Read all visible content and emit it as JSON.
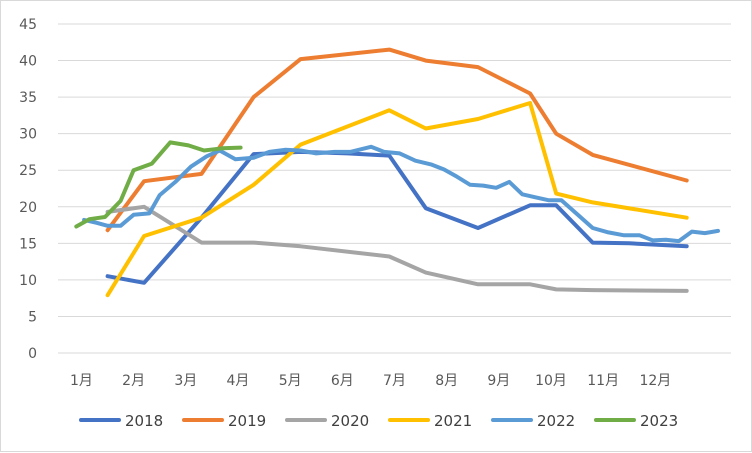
{
  "chart_data": {
    "type": "line",
    "title": "",
    "xlabel": "",
    "ylabel": "",
    "ylim": [
      0,
      45
    ],
    "yticks": [
      0,
      5,
      10,
      15,
      20,
      25,
      30,
      35,
      40,
      45
    ],
    "x_ticks": [
      {
        "label": "1月",
        "x": 1
      },
      {
        "label": "2月",
        "x": 2
      },
      {
        "label": "3月",
        "x": 3
      },
      {
        "label": "4月",
        "x": 4
      },
      {
        "label": "5月",
        "x": 5
      },
      {
        "label": "6月",
        "x": 6
      },
      {
        "label": "7月",
        "x": 7
      },
      {
        "label": "8月",
        "x": 8
      },
      {
        "label": "9月",
        "x": 9
      },
      {
        "label": "10月",
        "x": 10
      },
      {
        "label": "11月",
        "x": 11
      },
      {
        "label": "12月",
        "x": 12
      }
    ],
    "grid": true,
    "legend_position": "bottom",
    "series": [
      {
        "name": "2018",
        "color": "#4472C4",
        "points": [
          [
            1.5,
            10.5
          ],
          [
            2.2,
            9.6
          ],
          [
            3.3,
            18.5
          ],
          [
            4.3,
            27.2
          ],
          [
            5.2,
            27.5
          ],
          [
            6.1,
            27.3
          ],
          [
            6.9,
            27.0
          ],
          [
            7.6,
            19.8
          ],
          [
            8.6,
            17.1
          ],
          [
            9.6,
            20.2
          ],
          [
            10.1,
            20.2
          ],
          [
            10.8,
            15.1
          ],
          [
            11.5,
            15.0
          ],
          [
            12.6,
            14.6
          ]
        ]
      },
      {
        "name": "2019",
        "color": "#ED7D31",
        "points": [
          [
            1.5,
            16.8
          ],
          [
            2.2,
            23.5
          ],
          [
            3.3,
            24.5
          ],
          [
            4.3,
            35.0
          ],
          [
            5.2,
            40.2
          ],
          [
            6.9,
            41.5
          ],
          [
            7.6,
            40.0
          ],
          [
            8.6,
            39.1
          ],
          [
            9.6,
            35.5
          ],
          [
            10.1,
            30.0
          ],
          [
            10.8,
            27.1
          ],
          [
            12.6,
            23.6
          ]
        ]
      },
      {
        "name": "2020",
        "color": "#A5A5A5",
        "points": [
          [
            1.5,
            19.3
          ],
          [
            2.2,
            20.0
          ],
          [
            3.3,
            15.1
          ],
          [
            4.3,
            15.1
          ],
          [
            5.2,
            14.6
          ],
          [
            6.9,
            13.2
          ],
          [
            7.6,
            11.0
          ],
          [
            8.6,
            9.4
          ],
          [
            9.6,
            9.4
          ],
          [
            10.1,
            8.7
          ],
          [
            10.8,
            8.6
          ],
          [
            12.6,
            8.5
          ]
        ]
      },
      {
        "name": "2021",
        "color": "#FFC000",
        "points": [
          [
            1.5,
            7.9
          ],
          [
            2.2,
            16.0
          ],
          [
            3.3,
            18.5
          ],
          [
            4.3,
            23.0
          ],
          [
            5.2,
            28.5
          ],
          [
            6.9,
            33.2
          ],
          [
            7.6,
            30.7
          ],
          [
            8.6,
            32.0
          ],
          [
            9.6,
            34.2
          ],
          [
            10.1,
            21.8
          ],
          [
            10.8,
            20.6
          ],
          [
            12.6,
            18.5
          ]
        ]
      },
      {
        "name": "2022",
        "color": "#5B9BD5",
        "points": [
          [
            1.05,
            18.2
          ],
          [
            1.3,
            17.8
          ],
          [
            1.5,
            17.4
          ],
          [
            1.75,
            17.4
          ],
          [
            2.0,
            18.9
          ],
          [
            2.3,
            19.1
          ],
          [
            2.5,
            21.6
          ],
          [
            2.8,
            23.4
          ],
          [
            3.1,
            25.5
          ],
          [
            3.4,
            26.9
          ],
          [
            3.65,
            27.7
          ],
          [
            3.95,
            26.5
          ],
          [
            4.3,
            26.7
          ],
          [
            4.6,
            27.5
          ],
          [
            4.9,
            27.8
          ],
          [
            5.2,
            27.7
          ],
          [
            5.5,
            27.3
          ],
          [
            5.85,
            27.5
          ],
          [
            6.15,
            27.5
          ],
          [
            6.55,
            28.2
          ],
          [
            6.8,
            27.5
          ],
          [
            7.1,
            27.3
          ],
          [
            7.4,
            26.3
          ],
          [
            7.7,
            25.8
          ],
          [
            7.95,
            25.1
          ],
          [
            8.2,
            24.1
          ],
          [
            8.45,
            23.0
          ],
          [
            8.7,
            22.9
          ],
          [
            8.95,
            22.6
          ],
          [
            9.2,
            23.4
          ],
          [
            9.45,
            21.7
          ],
          [
            9.7,
            21.3
          ],
          [
            9.95,
            20.9
          ],
          [
            10.2,
            20.9
          ],
          [
            10.5,
            19.0
          ],
          [
            10.8,
            17.1
          ],
          [
            11.1,
            16.5
          ],
          [
            11.4,
            16.1
          ],
          [
            11.7,
            16.1
          ],
          [
            11.95,
            15.4
          ],
          [
            12.2,
            15.5
          ],
          [
            12.45,
            15.3
          ],
          [
            12.7,
            16.6
          ],
          [
            12.95,
            16.4
          ],
          [
            13.2,
            16.7
          ]
        ]
      },
      {
        "name": "2023",
        "color": "#70AD47",
        "points": [
          [
            0.9,
            17.3
          ],
          [
            1.15,
            18.3
          ],
          [
            1.45,
            18.6
          ],
          [
            1.75,
            20.8
          ],
          [
            2.0,
            25.0
          ],
          [
            2.35,
            25.9
          ],
          [
            2.7,
            28.8
          ],
          [
            3.05,
            28.4
          ],
          [
            3.35,
            27.7
          ],
          [
            3.7,
            28.0
          ],
          [
            4.05,
            28.1
          ]
        ]
      }
    ]
  }
}
